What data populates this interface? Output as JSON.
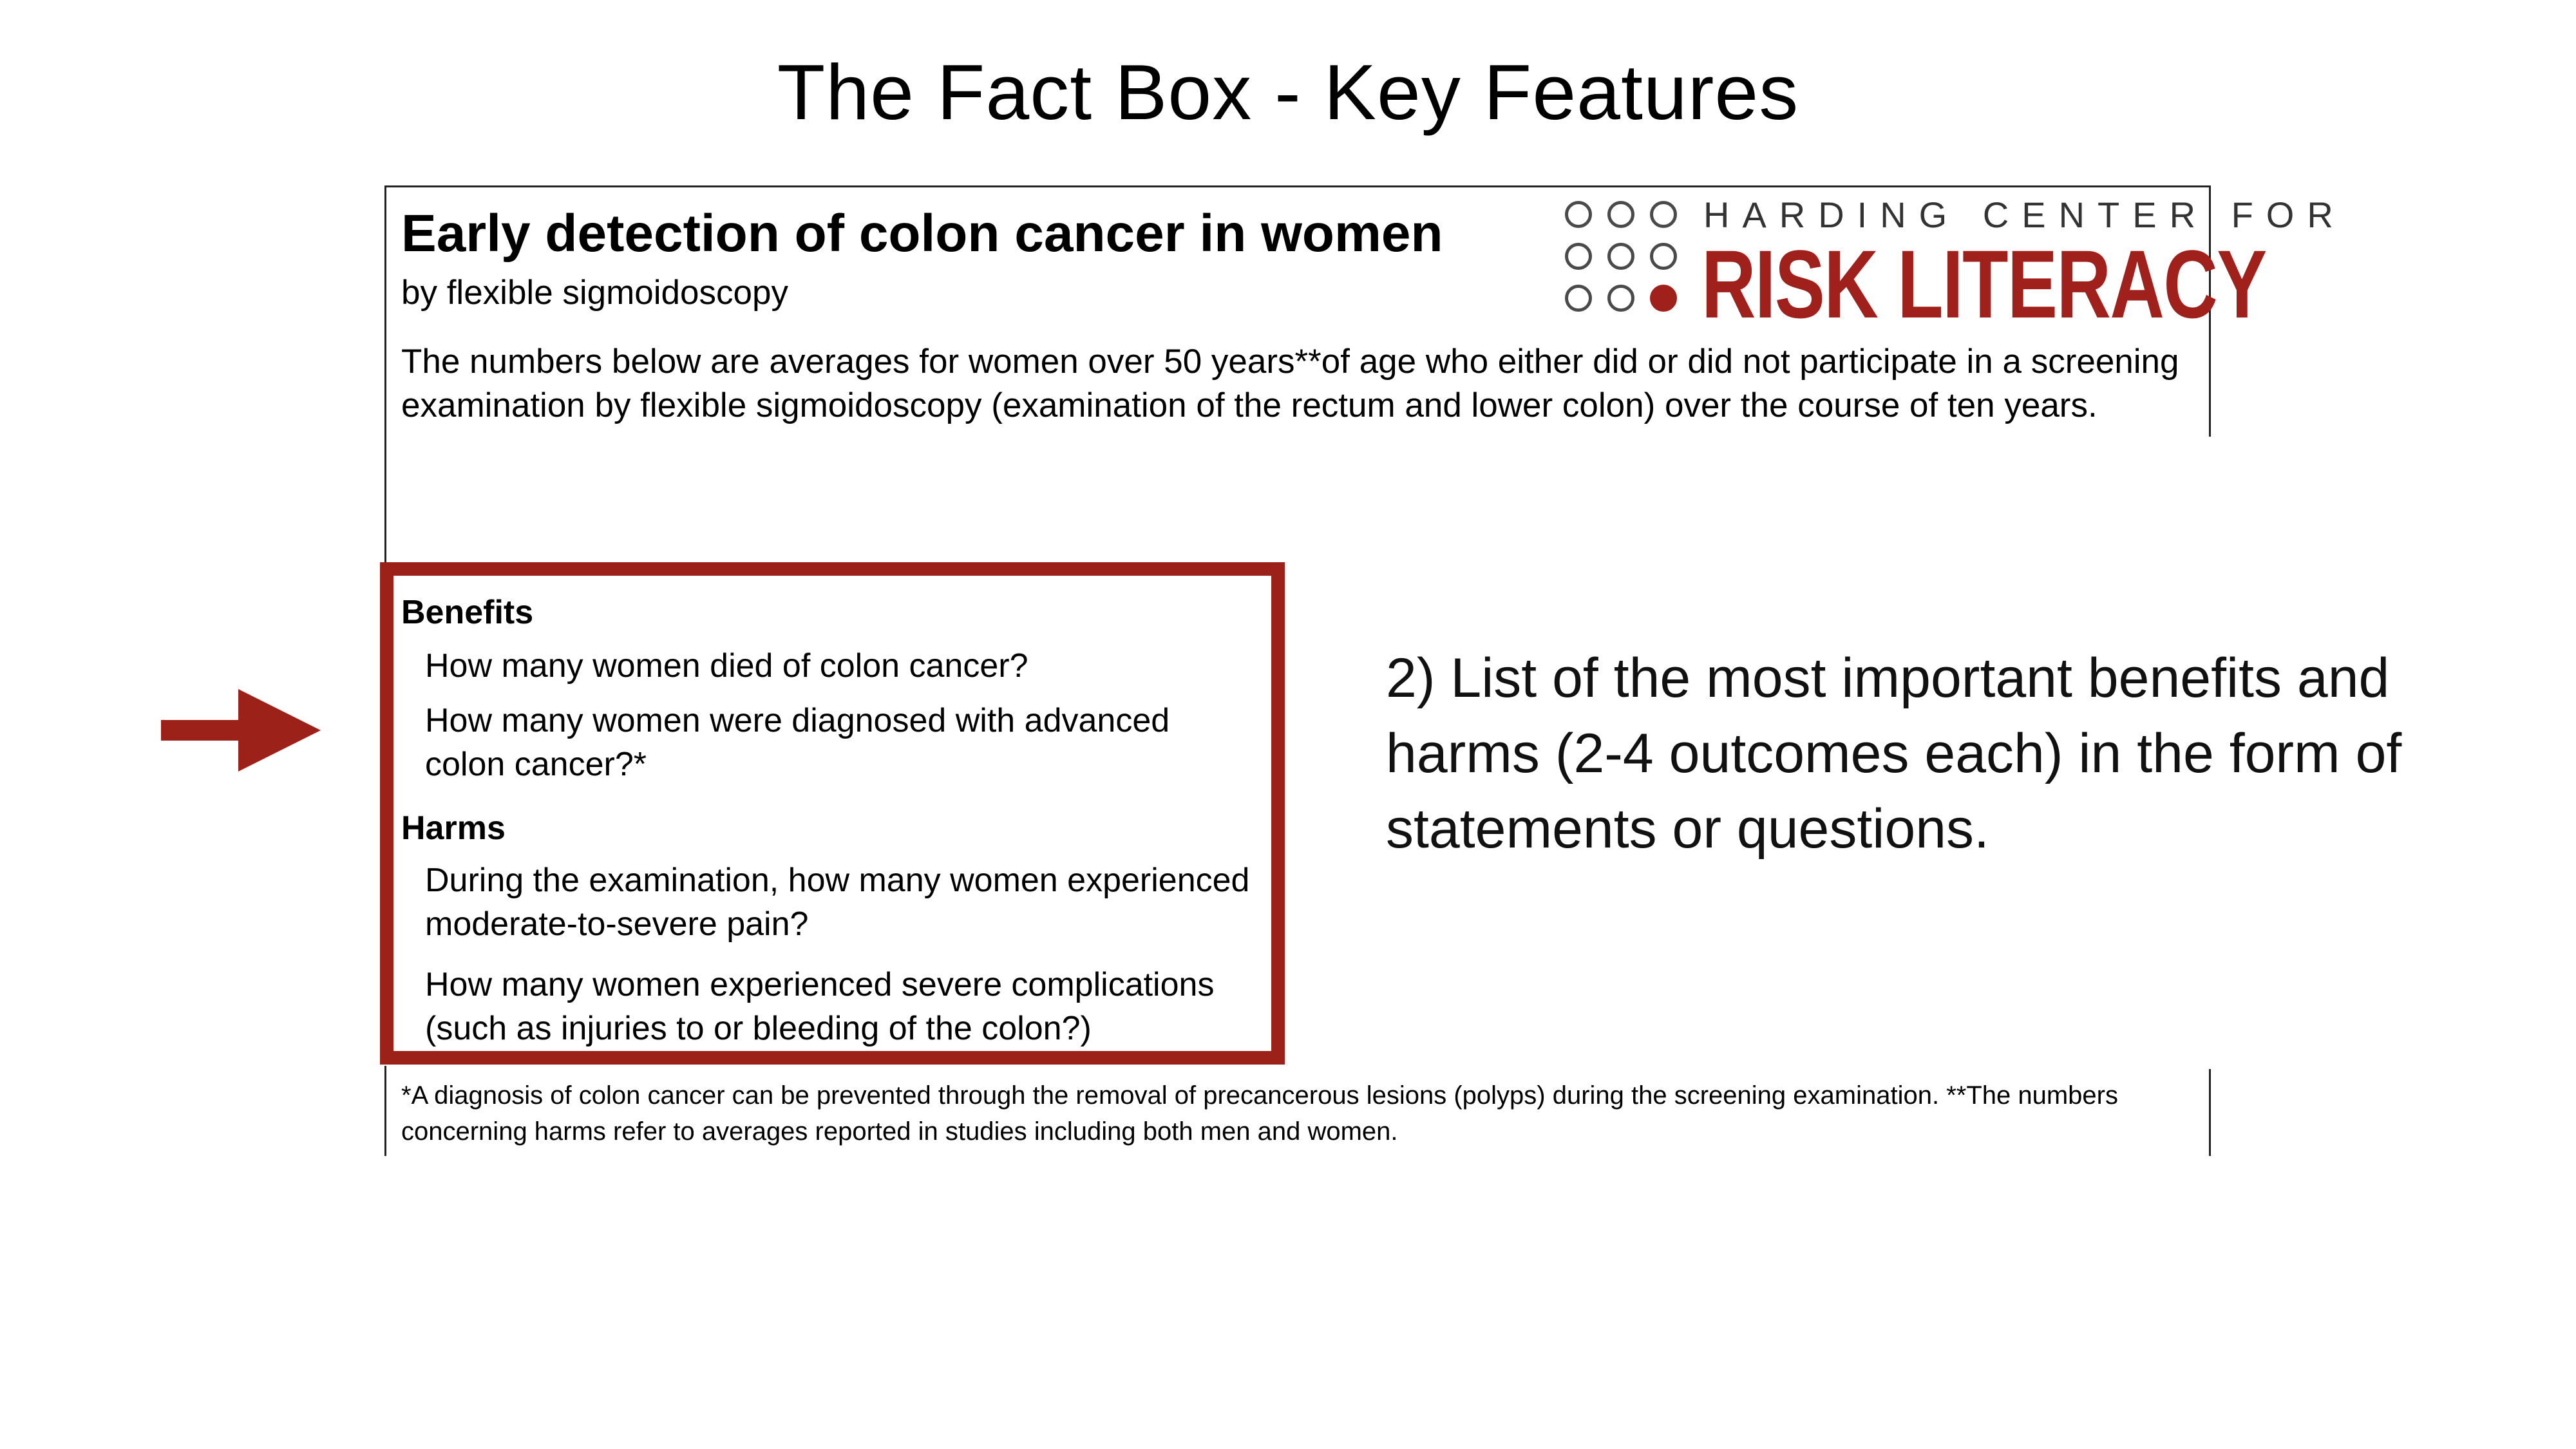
{
  "slide": {
    "title": "The Fact Box - Key Features"
  },
  "fact_box": {
    "title": "Early detection of colon cancer in women",
    "subtitle": "by flexible sigmoidoscopy",
    "intro": "The numbers below are averages for women over 50 years**of age  who either did or did not participate in a screening examination by flexible sigmoidoscopy (examination of the rectum and lower colon) over the course of ten years.",
    "footnote": "*A diagnosis of colon cancer can be prevented through the removal of precancerous lesions (polyps) during the screening examination. **The numbers concerning harms refer to averages reported in studies including both men and women."
  },
  "logo": {
    "line1": "HARDING CENTER FOR",
    "line2": "RISK LITERACY",
    "brand_color": "#a0201c",
    "circle_color": "#4a4a4a"
  },
  "benefits": {
    "heading": "Benefits",
    "items": [
      "How many women died of colon cancer?",
      "How many women were diagnosed with advanced colon cancer?*"
    ]
  },
  "harms": {
    "heading": "Harms",
    "items": [
      "During the examination, how many women experienced moderate-to-severe pain?",
      "How many women experienced severe complications (such as injuries to or bleeding of the colon?)"
    ]
  },
  "annotation": {
    "text": "2) List of the most important benefits and harms (2-4 outcomes each) in the form of statements or questions.",
    "arrow_icon": "arrow-right-icon",
    "accent_color": "#9b2119"
  }
}
